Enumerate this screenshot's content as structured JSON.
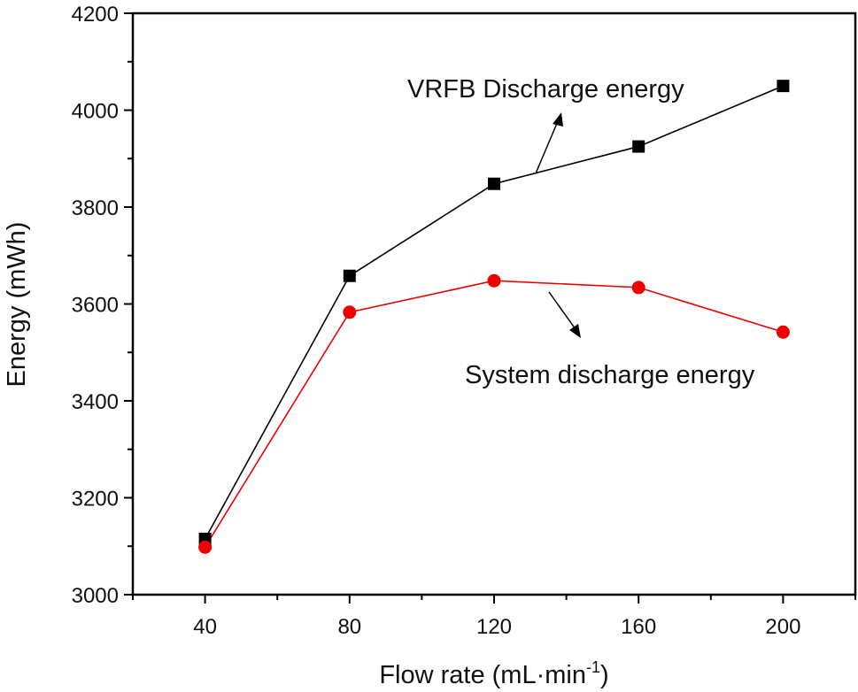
{
  "chart_data": {
    "type": "line",
    "title": "",
    "xlabel": "Flow rate (mL·min",
    "xlabel_sup": "-1",
    "xlabel_close": ")",
    "ylabel": "Energy (mWh)",
    "xlim": [
      20,
      220
    ],
    "ylim": [
      3000,
      4200
    ],
    "x_ticks": [
      40,
      80,
      120,
      160,
      200
    ],
    "y_ticks": [
      3000,
      3200,
      3400,
      3600,
      3800,
      4000,
      4200
    ],
    "grid": false,
    "x": [
      40,
      80,
      120,
      160,
      200
    ],
    "series": [
      {
        "name": "VRFB Discharge energy",
        "color": "#000000",
        "marker": "square",
        "values": [
          3115,
          3658,
          3848,
          3925,
          4050
        ]
      },
      {
        "name": "System discharge energy",
        "color": "#ee0000",
        "marker": "circle",
        "values": [
          3098,
          3583,
          3648,
          3634,
          3542
        ]
      }
    ]
  }
}
